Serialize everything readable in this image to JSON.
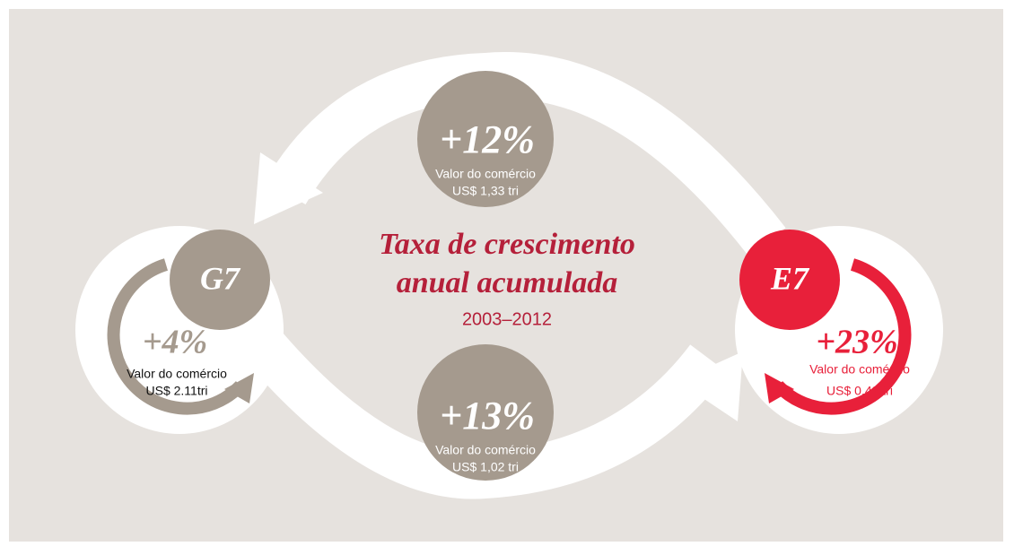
{
  "title_lines": [
    "Taxa de crescimento",
    "anual acumulada"
  ],
  "period": "2003–2012",
  "flows": [
    {
      "value": "+12%",
      "label": "Valor do comércio",
      "amount": "US$ 1,33 tri"
    },
    {
      "value": "+13%",
      "label": "Valor do comércio",
      "amount": "US$ 1,02 tri"
    }
  ],
  "groups": [
    {
      "name": "G7",
      "value": "+4%",
      "label": "Valor do comércio",
      "amount": "US$ 2.11tri"
    },
    {
      "name": "E7",
      "value": "+23%",
      "label": "Valor do comércio",
      "amount": "US$ 0,42 tri"
    }
  ]
}
